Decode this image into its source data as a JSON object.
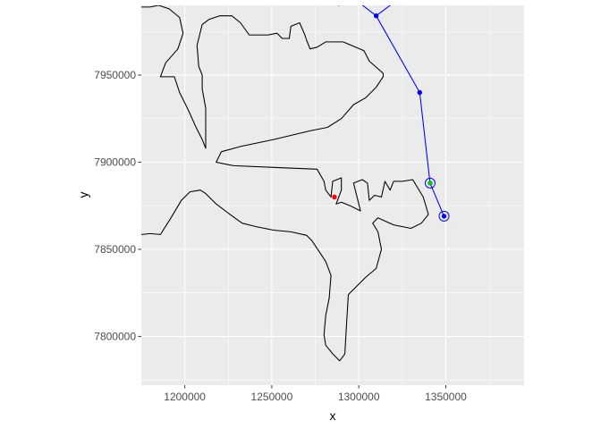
{
  "chart_data": {
    "type": "line",
    "title": "",
    "xlabel": "x",
    "ylabel": "y",
    "xlim": [
      1175000,
      1395000
    ],
    "ylim": [
      7772000,
      7990000
    ],
    "x_ticks": [
      1200000,
      1250000,
      1300000,
      1350000
    ],
    "y_ticks": [
      7800000,
      7850000,
      7900000,
      7950000
    ],
    "grid": true,
    "panel_background": "#ebebeb",
    "grid_color": "#ffffff",
    "legend": "none",
    "series": [
      {
        "kind": "path",
        "color": "#000000",
        "points": [
          [
            1175000,
            7858500
          ],
          [
            1180000,
            7859000
          ],
          [
            1186000,
            7858500
          ],
          [
            1192000,
            7868000
          ],
          [
            1198000,
            7878000
          ],
          [
            1203000,
            7883000
          ],
          [
            1209000,
            7884000
          ],
          [
            1212000,
            7882000
          ],
          [
            1218000,
            7876000
          ],
          [
            1226000,
            7870000
          ],
          [
            1233000,
            7865000
          ],
          [
            1241000,
            7863000
          ],
          [
            1251000,
            7861000
          ],
          [
            1261000,
            7860000
          ],
          [
            1270000,
            7858000
          ],
          [
            1273000,
            7855000
          ],
          [
            1281000,
            7843000
          ],
          [
            1284000,
            7835000
          ],
          [
            1283000,
            7822000
          ],
          [
            1281000,
            7812000
          ],
          [
            1280000,
            7801000
          ],
          [
            1281000,
            7795000
          ],
          [
            1285000,
            7790000
          ],
          [
            1289000,
            7786000
          ],
          [
            1292000,
            7790000
          ],
          [
            1293000,
            7808000
          ],
          [
            1294000,
            7824000
          ],
          [
            1304000,
            7834000
          ],
          [
            1310000,
            7839000
          ],
          [
            1313000,
            7850000
          ],
          [
            1311000,
            7860000
          ],
          [
            1308000,
            7865000
          ],
          [
            1311000,
            7868000
          ],
          [
            1320000,
            7864000
          ],
          [
            1330000,
            7862000
          ],
          [
            1336000,
            7865000
          ],
          [
            1340000,
            7870000
          ],
          [
            1337000,
            7880000
          ],
          [
            1331000,
            7890000
          ],
          [
            1325000,
            7889000
          ],
          [
            1320000,
            7889000
          ],
          [
            1318000,
            7884000
          ],
          [
            1315000,
            7889000
          ],
          [
            1313000,
            7880000
          ],
          [
            1309000,
            7881000
          ],
          [
            1306000,
            7878000
          ],
          [
            1305000,
            7888000
          ],
          [
            1302000,
            7890000
          ],
          [
            1297000,
            7888000
          ],
          [
            1299000,
            7880000
          ],
          [
            1301000,
            7872000
          ],
          [
            1295000,
            7875000
          ],
          [
            1290000,
            7877000
          ],
          [
            1287000,
            7876000
          ],
          [
            1290000,
            7884000
          ],
          [
            1290000,
            7891000
          ],
          [
            1285000,
            7889000
          ],
          [
            1284000,
            7880000
          ],
          [
            1281000,
            7884000
          ],
          [
            1280000,
            7889000
          ],
          [
            1276000,
            7896000
          ],
          [
            1251000,
            7897000
          ],
          [
            1228000,
            7898000
          ],
          [
            1218000,
            7900000
          ],
          [
            1221000,
            7906000
          ],
          [
            1232000,
            7909000
          ],
          [
            1251000,
            7913000
          ],
          [
            1272000,
            7918000
          ],
          [
            1282000,
            7920000
          ],
          [
            1290000,
            7925000
          ],
          [
            1297000,
            7933000
          ],
          [
            1304000,
            7937000
          ],
          [
            1310000,
            7943000
          ],
          [
            1314000,
            7949000
          ],
          [
            1314000,
            7951000
          ],
          [
            1306000,
            7958000
          ],
          [
            1303000,
            7964000
          ],
          [
            1291000,
            7969000
          ],
          [
            1281000,
            7969000
          ],
          [
            1276000,
            7966000
          ],
          [
            1272000,
            7965000
          ],
          [
            1270000,
            7970000
          ],
          [
            1269000,
            7973000
          ],
          [
            1266000,
            7980000
          ],
          [
            1261000,
            7978000
          ],
          [
            1260000,
            7971000
          ],
          [
            1256000,
            7971000
          ],
          [
            1253000,
            7974000
          ],
          [
            1248000,
            7973000
          ],
          [
            1244000,
            7973000
          ],
          [
            1237000,
            7973000
          ],
          [
            1232000,
            7980000
          ],
          [
            1227000,
            7984000
          ],
          [
            1220000,
            7984000
          ],
          [
            1214000,
            7982000
          ],
          [
            1210000,
            7979000
          ],
          [
            1207000,
            7967000
          ],
          [
            1208000,
            7955000
          ],
          [
            1210000,
            7950000
          ],
          [
            1210000,
            7942000
          ],
          [
            1212000,
            7931000
          ],
          [
            1212000,
            7916000
          ],
          [
            1212000,
            7908000
          ],
          [
            1210000,
            7913000
          ],
          [
            1206000,
            7921000
          ],
          [
            1202000,
            7930000
          ],
          [
            1197000,
            7940000
          ],
          [
            1194000,
            7949000
          ],
          [
            1189000,
            7949000
          ],
          [
            1186000,
            7949000
          ],
          [
            1189000,
            7957000
          ],
          [
            1196000,
            7965000
          ],
          [
            1199000,
            7974000
          ],
          [
            1197000,
            7983000
          ],
          [
            1191000,
            7988000
          ],
          [
            1185000,
            7990000
          ],
          [
            1180000,
            7989000
          ],
          [
            1175000,
            7989000
          ]
        ]
      },
      {
        "kind": "track",
        "color": "#0000ff",
        "points": [
          [
            1364000,
            8008000
          ],
          [
            1330000,
            7999000
          ],
          [
            1310000,
            7984000
          ],
          [
            1301000,
            7991000
          ],
          [
            1296000,
            7992000
          ],
          [
            1288000,
            7990000
          ]
        ]
      },
      {
        "kind": "track",
        "color": "#0000ff",
        "points": [
          [
            1310000,
            7984000
          ],
          [
            1335000,
            7940000
          ],
          [
            1341000,
            7888000
          ],
          [
            1349000,
            7869000
          ]
        ]
      }
    ],
    "points": [
      {
        "x": 1310000,
        "y": 7984000,
        "color": "#0000ff",
        "shape": "dot"
      },
      {
        "x": 1335000,
        "y": 7940000,
        "color": "#0000ff",
        "shape": "dot"
      },
      {
        "x": 1341000,
        "y": 7888000,
        "color": "#0000ff",
        "shape": "dot"
      },
      {
        "x": 1349000,
        "y": 7869000,
        "color": "#0000ff",
        "shape": "dot"
      },
      {
        "x": 1286000,
        "y": 7880000,
        "color": "#ff0000",
        "shape": "dot"
      },
      {
        "x": 1341000,
        "y": 7888000,
        "color": "#00cc00",
        "shape": "dot"
      },
      {
        "x": 1341000,
        "y": 7888000,
        "color": "#0000ff",
        "shape": "ring"
      },
      {
        "x": 1349000,
        "y": 7869000,
        "color": "#0000ff",
        "shape": "ring"
      }
    ]
  }
}
